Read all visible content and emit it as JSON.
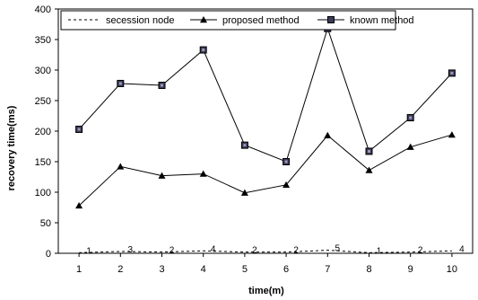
{
  "chart_data": {
    "type": "line",
    "x": [
      1,
      2,
      3,
      4,
      5,
      6,
      7,
      8,
      9,
      10
    ],
    "series": [
      {
        "name": "secession node",
        "values": [
          1,
          3,
          2,
          4,
          2,
          2,
          5,
          1,
          2,
          4
        ],
        "data_labels": [
          "1",
          "3",
          "2",
          "4",
          "2",
          "2",
          "5",
          "1",
          "2",
          "4"
        ],
        "color": "#000000",
        "style": "dashed",
        "marker": "none"
      },
      {
        "name": "proposed method",
        "values": [
          78,
          142,
          127,
          130,
          99,
          112,
          193,
          136,
          174,
          194
        ],
        "color": "#000000",
        "style": "solid",
        "marker": "triangle"
      },
      {
        "name": "known method",
        "values": [
          203,
          278,
          275,
          333,
          177,
          150,
          368,
          167,
          222,
          295
        ],
        "color": "#000000",
        "style": "solid",
        "marker": "square"
      }
    ],
    "xlabel": "time(m)",
    "ylabel": "recovery time(ms)",
    "xlim": [
      0.5,
      10.5
    ],
    "ylim": [
      0,
      400
    ],
    "yticks": [
      0,
      50,
      100,
      150,
      200,
      250,
      300,
      350,
      400
    ],
    "xticks": [
      "1",
      "2",
      "3",
      "4",
      "5",
      "6",
      "7",
      "8",
      "9",
      "10"
    ],
    "grid": false,
    "legend_position": "top"
  }
}
